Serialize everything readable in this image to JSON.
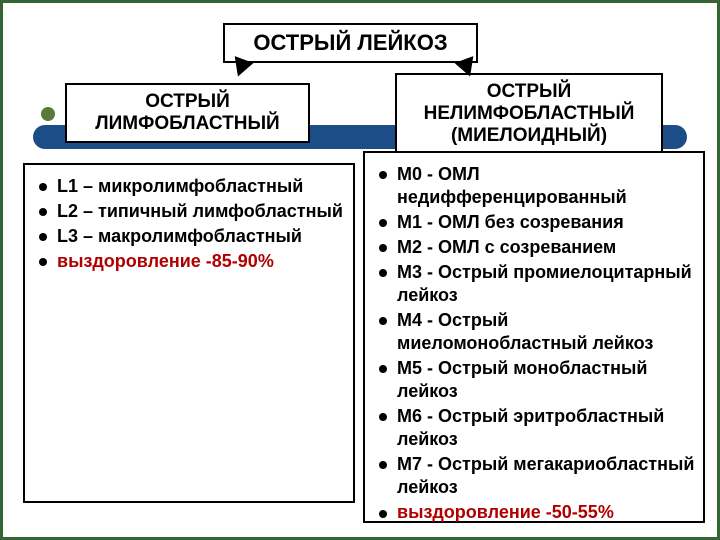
{
  "title": "ОСТРЫЙ ЛЕЙКОЗ",
  "left": {
    "heading_line1": "ОСТРЫЙ",
    "heading_line2": "ЛИМФОБЛАСТНЫЙ",
    "items": [
      {
        "text": "L1 – микролимфобластный",
        "hl": false
      },
      {
        "text": "L2 – типичный лимфобластный",
        "hl": false
      },
      {
        "text": "L3 – макролимфобластный",
        "hl": false
      },
      {
        "text": "выздоровление -85-90%",
        "hl": true
      }
    ]
  },
  "right": {
    "heading_line1": "ОСТРЫЙ",
    "heading_line2": "НЕЛИМФОБЛАСТНЫЙ",
    "heading_line3": "(МИЕЛОИДНЫЙ)",
    "items": [
      {
        "text": "М0 - ОМЛ недифференцированный",
        "hl": false
      },
      {
        "text": "М1 - ОМЛ без созревания",
        "hl": false
      },
      {
        "text": "М2 - ОМЛ с созреванием",
        "hl": false
      },
      {
        "text": "М3 - Острый промиелоцитарный лейкоз",
        "hl": false
      },
      {
        "text": "М4 - Острый миеломонобластный лейкоз",
        "hl": false
      },
      {
        "text": "М5 - Острый монобластный лейкоз",
        "hl": false
      },
      {
        "text": "М6 - Острый эритробластный лейкоз",
        "hl": false
      },
      {
        "text": "М7 - Острый мегакариобластный лейкоз",
        "hl": false
      },
      {
        "text": "выздоровление -50-55%",
        "hl": true
      }
    ]
  },
  "colors": {
    "frame": "#336633",
    "bar": "#1d4d86",
    "dot": "#5a7a3c",
    "highlight": "#b00000"
  }
}
